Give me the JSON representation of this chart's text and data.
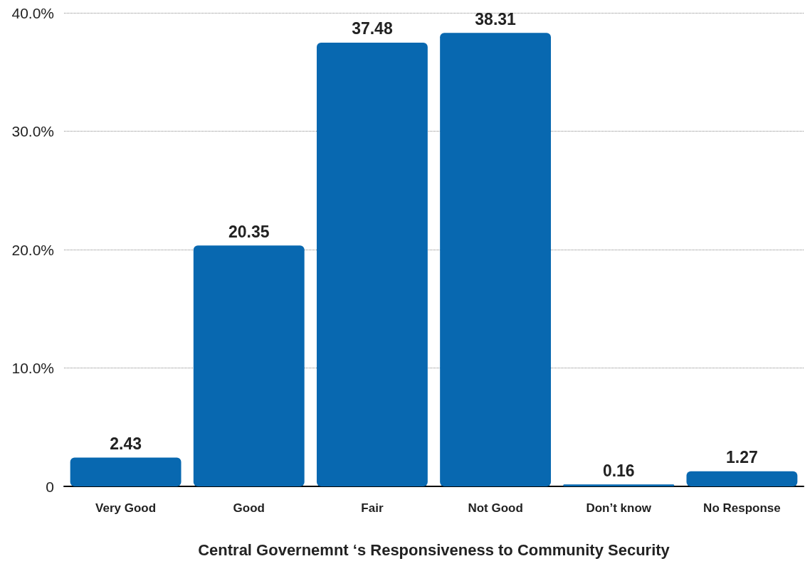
{
  "chart_data": {
    "type": "bar",
    "xlabel": "Central Governemnt ‘s Responsiveness to Community Security",
    "categories": [
      "Very Good",
      "Good",
      "Fair",
      "Not Good",
      "Don’t know",
      "No Response"
    ],
    "values": [
      2.43,
      20.35,
      37.48,
      38.31,
      0.16,
      1.27
    ],
    "color": "#0868b0",
    "ylim": [
      0,
      40
    ],
    "yticks": [
      0,
      {
        "value": 10,
        "label": "10.0%"
      },
      {
        "value": 20,
        "label": "20.0%"
      },
      {
        "value": 30,
        "label": "30.0%"
      },
      {
        "value": 40,
        "label": "40.0%"
      }
    ],
    "grid": "y",
    "data_labels": true
  }
}
